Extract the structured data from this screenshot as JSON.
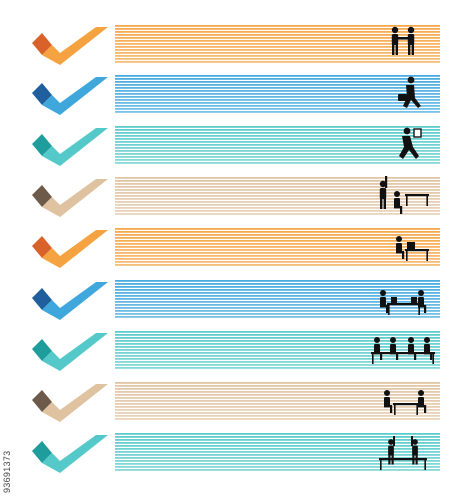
{
  "watermark_id": "93691373",
  "rows": [
    {
      "colors": {
        "dark": "#d9622b",
        "light": "#f4a340"
      },
      "icon": "handshake-icon"
    },
    {
      "colors": {
        "dark": "#1f5f9e",
        "light": "#3fa7dc"
      },
      "icon": "running-briefcase-icon"
    },
    {
      "colors": {
        "dark": "#1f9c9c",
        "light": "#55c9c9"
      },
      "icon": "running-with-paper-icon"
    },
    {
      "colors": {
        "dark": "#6e5a4a",
        "light": "#dfc2a0"
      },
      "icon": "person-raising-hand-desk-icon"
    },
    {
      "colors": {
        "dark": "#d9622b",
        "light": "#f4a340"
      },
      "icon": "person-at-computer-icon"
    },
    {
      "colors": {
        "dark": "#1f5f9e",
        "light": "#3fa7dc"
      },
      "icon": "two-people-at-laptops-icon"
    },
    {
      "colors": {
        "dark": "#1f9c9c",
        "light": "#55c9c9"
      },
      "icon": "team-meeting-icon"
    },
    {
      "colors": {
        "dark": "#6e5a4a",
        "light": "#dfc2a0"
      },
      "icon": "two-people-at-table-icon"
    },
    {
      "colors": {
        "dark": "#1f9c9c",
        "light": "#55c9c9"
      },
      "icon": "two-people-high-five-icon"
    }
  ]
}
